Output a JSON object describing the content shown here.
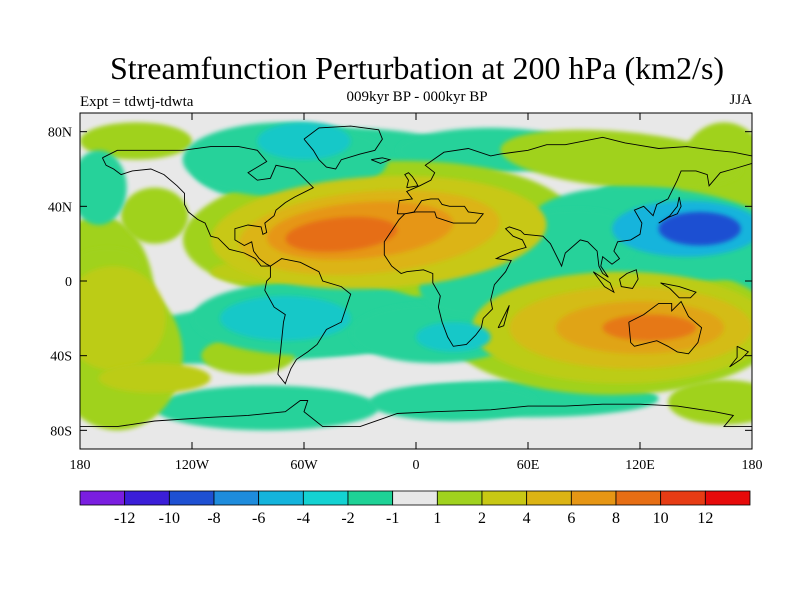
{
  "title": "Streamfunction Perturbation at 200 hPa (km2/s)",
  "subtitle": "009kyr BP - 000kyr BP",
  "left_string": "Expt = tdwtj-tdwta",
  "right_string": "JJA",
  "map": {
    "lon_range": [
      -180,
      180
    ],
    "lat_range": [
      -90,
      90
    ],
    "x_ticks": [
      {
        "lon": -180,
        "label": "180"
      },
      {
        "lon": -120,
        "label": "120W"
      },
      {
        "lon": -60,
        "label": "60W"
      },
      {
        "lon": 0,
        "label": "0"
      },
      {
        "lon": 60,
        "label": "60E"
      },
      {
        "lon": 120,
        "label": "120E"
      },
      {
        "lon": 180,
        "label": "180"
      }
    ],
    "y_ticks": [
      {
        "lat": 80,
        "label": "80N"
      },
      {
        "lat": 40,
        "label": "40N"
      },
      {
        "lat": 0,
        "label": "0"
      },
      {
        "lat": -40,
        "label": "40S"
      },
      {
        "lat": -80,
        "label": "80S"
      }
    ],
    "features": [
      {
        "kind": "positive",
        "level": 9,
        "lon": -40,
        "lat": 25,
        "rx": 30,
        "ry": 9,
        "angle": -5
      },
      {
        "kind": "positive",
        "level": 7,
        "lon": -30,
        "lat": 27,
        "rx": 50,
        "ry": 15,
        "angle": -5
      },
      {
        "kind": "positive",
        "level": 5,
        "lon": -25,
        "lat": 26,
        "rx": 70,
        "ry": 22,
        "angle": -5
      },
      {
        "kind": "positive",
        "level": 3,
        "lon": -20,
        "lat": 26,
        "rx": 90,
        "ry": 30,
        "angle": -3
      },
      {
        "kind": "positive",
        "level": 1,
        "lon": -20,
        "lat": 27,
        "rx": 105,
        "ry": 37,
        "angle": -3
      },
      {
        "kind": "positive",
        "level": 8,
        "lon": 125,
        "lat": -25,
        "rx": 25,
        "ry": 7,
        "angle": 0
      },
      {
        "kind": "positive",
        "level": 6,
        "lon": 120,
        "lat": -25,
        "rx": 45,
        "ry": 14,
        "angle": 0
      },
      {
        "kind": "positive",
        "level": 4,
        "lon": 115,
        "lat": -25,
        "rx": 65,
        "ry": 22,
        "angle": 0
      },
      {
        "kind": "positive",
        "level": 2,
        "lon": 110,
        "lat": -25,
        "rx": 80,
        "ry": 30,
        "angle": 0
      },
      {
        "kind": "positive",
        "level": 1,
        "lon": 105,
        "lat": -25,
        "rx": 90,
        "ry": 36,
        "angle": 0
      },
      {
        "kind": "positive",
        "level": 1,
        "lon": 110,
        "lat": 65,
        "rx": 65,
        "ry": 15,
        "angle": 5
      },
      {
        "kind": "positive",
        "level": 2,
        "lon": -162,
        "lat": -20,
        "rx": 28,
        "ry": 28,
        "angle": 0
      },
      {
        "kind": "positive",
        "level": 1,
        "lon": -160,
        "lat": -40,
        "rx": 35,
        "ry": 40,
        "angle": 0
      },
      {
        "kind": "positive",
        "level": 1,
        "lon": -165,
        "lat": 10,
        "rx": 18,
        "ry": 8,
        "angle": 0
      },
      {
        "kind": "positive",
        "level": 1,
        "lon": -90,
        "lat": -40,
        "rx": 25,
        "ry": 10,
        "angle": 0
      },
      {
        "kind": "positive",
        "level": 2,
        "lon": -140,
        "lat": -52,
        "rx": 30,
        "ry": 8,
        "angle": 0
      },
      {
        "kind": "positive",
        "level": 2,
        "lon": -85,
        "lat": 5,
        "rx": 25,
        "ry": 6,
        "angle": 0
      },
      {
        "kind": "positive",
        "level": 1,
        "lon": -140,
        "lat": 35,
        "rx": 18,
        "ry": 15,
        "angle": 0
      },
      {
        "kind": "positive",
        "level": 1,
        "lon": 165,
        "lat": -65,
        "rx": 30,
        "ry": 12,
        "angle": 0
      },
      {
        "kind": "negative",
        "level": 5,
        "lon": 152,
        "lat": 28,
        "rx": 22,
        "ry": 9,
        "angle": 0
      },
      {
        "kind": "negative",
        "level": 3,
        "lon": 145,
        "lat": 28,
        "rx": 40,
        "ry": 15,
        "angle": 0
      },
      {
        "kind": "negative",
        "level": 1,
        "lon": 130,
        "lat": 25,
        "rx": 70,
        "ry": 25,
        "angle": 5
      },
      {
        "kind": "negative",
        "level": 2,
        "lon": -70,
        "lat": -20,
        "rx": 35,
        "ry": 12,
        "angle": 0
      },
      {
        "kind": "negative",
        "level": 1,
        "lon": -55,
        "lat": -20,
        "rx": 65,
        "ry": 20,
        "angle": 0
      },
      {
        "kind": "negative",
        "level": 2,
        "lon": 20,
        "lat": -30,
        "rx": 20,
        "ry": 8,
        "angle": 0
      },
      {
        "kind": "negative",
        "level": 1,
        "lon": 10,
        "lat": -28,
        "rx": 45,
        "ry": 16,
        "angle": 0
      },
      {
        "kind": "negative",
        "level": 2,
        "lon": -60,
        "lat": 75,
        "rx": 25,
        "ry": 10,
        "angle": 0
      },
      {
        "kind": "negative",
        "level": 1,
        "lon": -70,
        "lat": 65,
        "rx": 55,
        "ry": 20,
        "angle": 0
      },
      {
        "kind": "negative",
        "level": 1,
        "lon": 20,
        "lat": -65,
        "rx": 45,
        "ry": 10,
        "angle": 0
      },
      {
        "kind": "negative",
        "level": 1,
        "lon": 60,
        "lat": 10,
        "rx": 60,
        "ry": 25,
        "angle": -15
      },
      {
        "kind": "negative",
        "level": 1,
        "lon": -170,
        "lat": 50,
        "rx": 15,
        "ry": 20,
        "angle": 0
      }
    ]
  },
  "colorbar": {
    "labels": [
      "-12",
      "-10",
      "-8",
      "-6",
      "-4",
      "-2",
      "-1",
      "1",
      "2",
      "4",
      "6",
      "8",
      "10",
      "12"
    ],
    "colors": [
      "#7a1ee0",
      "#3b1ed8",
      "#1e50d2",
      "#1e8cdc",
      "#14b4dc",
      "#14d2d2",
      "#1ed296",
      "#e8e8e8",
      "#a0d21e",
      "#c8c814",
      "#dcb414",
      "#e69614",
      "#e66e14",
      "#e63c14",
      "#e60a0a"
    ]
  },
  "colors": {
    "zero_band": "#e8e8e8",
    "negative_levels": [
      "#28d29a",
      "#14c8c8",
      "#14b4dc",
      "#1e8cdc",
      "#1e50d2"
    ],
    "positive_levels": [
      "#a0d21e",
      "#bccc18",
      "#c8c814",
      "#d4bc14",
      "#dcb414",
      "#e0a414",
      "#e69614",
      "#e67814",
      "#e66e14"
    ]
  }
}
